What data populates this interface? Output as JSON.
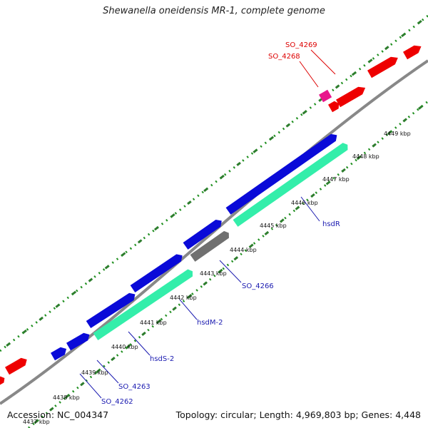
{
  "title": "Shewanella oneidensis MR-1, complete genome",
  "accession": "Accession: NC_004347",
  "summary": "Topology: circular; Length: 4,969,803 bp; Genes: 4,448",
  "colors": {
    "backbone": "#888888",
    "dot_green": "#1f8f1f",
    "tick_green": "#2e7d2e",
    "red": "#ee0000",
    "magenta": "#e8168c",
    "blue": "#0a0ad8",
    "mint": "#33eeaa",
    "gray": "#707070",
    "label_red": "#dd0000",
    "label_blue": "#1a1ab0"
  },
  "scale_labels": [
    "4437 kbp",
    "4438 kbp",
    "4439 kbp",
    "4440 kbp",
    "4441 kbp",
    "4442 kbp",
    "4443 kbp",
    "4444 kbp",
    "4445 kbp",
    "4446 kbp",
    "4447 kbp",
    "4448 kbp",
    "4449 kbp"
  ],
  "gene_labels": [
    {
      "text": "SO_4269",
      "color": "red"
    },
    {
      "text": "SO_4268",
      "color": "red"
    },
    {
      "text": "hsdR",
      "color": "blue"
    },
    {
      "text": "SO_4266",
      "color": "blue"
    },
    {
      "text": "hsdM-2",
      "color": "blue"
    },
    {
      "text": "hsdS-2",
      "color": "blue"
    },
    {
      "text": "SO_4263",
      "color": "blue"
    },
    {
      "text": "SO_4262",
      "color": "blue"
    }
  ]
}
